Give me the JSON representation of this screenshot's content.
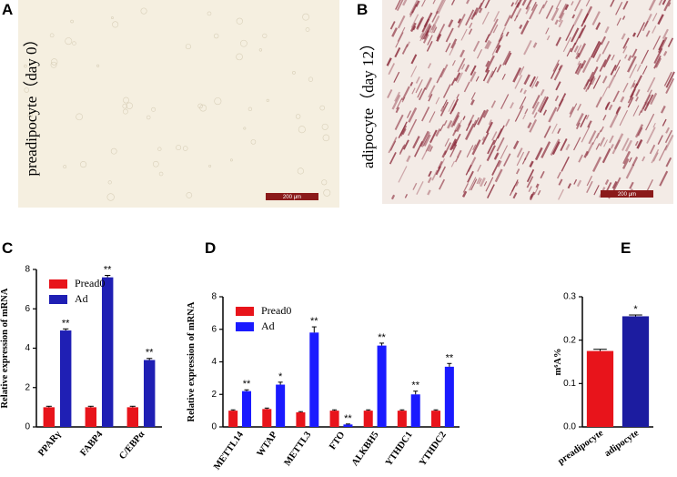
{
  "images": [
    {
      "panel_label": "A",
      "caption": "preadipocyte（day 0）",
      "scale_bar": "200 μm"
    },
    {
      "panel_label": "B",
      "caption": "adipocyte（day 12）",
      "scale_bar": "200 μm"
    }
  ],
  "chart_data": [
    {
      "type": "bar",
      "panel_label": "C",
      "y_label": "Relative expression of  mRNA",
      "categories": [
        "PPARγ",
        "FABP4",
        "C/EBPα"
      ],
      "series": [
        {
          "name": "Pread0",
          "color": "#e8141b",
          "values": [
            1.0,
            1.0,
            1.0
          ],
          "errors": [
            0.05,
            0.05,
            0.05
          ]
        },
        {
          "name": "Ad",
          "color": "#1f1fb4",
          "values": [
            4.9,
            7.6,
            3.4
          ],
          "errors": [
            0.08,
            0.1,
            0.08
          ],
          "significance": [
            "**",
            "**",
            "**"
          ]
        }
      ],
      "ylim": [
        0,
        8
      ],
      "yticks": [
        0,
        2,
        4,
        6,
        8
      ],
      "legend": "upper left"
    },
    {
      "type": "bar",
      "panel_label": "D",
      "y_label": "Relative expression of  mRNA",
      "categories": [
        "METTL14",
        "WTAP",
        "METTL3",
        "FTO",
        "ALKBH5",
        "YTHDC1",
        "YTHDC2"
      ],
      "series": [
        {
          "name": "Pread0",
          "color": "#e8141b",
          "values": [
            1.0,
            1.1,
            0.9,
            1.0,
            1.0,
            1.0,
            1.0
          ],
          "errors": [
            0.05,
            0.06,
            0.04,
            0.05,
            0.05,
            0.05,
            0.05
          ]
        },
        {
          "name": "Ad",
          "color": "#1a1aff",
          "values": [
            2.2,
            2.6,
            5.8,
            0.15,
            5.0,
            2.0,
            3.7
          ],
          "errors": [
            0.08,
            0.15,
            0.35,
            0.03,
            0.15,
            0.2,
            0.2
          ],
          "significance": [
            "**",
            "*",
            "**",
            "**",
            "**",
            "**",
            "**"
          ]
        }
      ],
      "ylim": [
        0,
        8
      ],
      "yticks": [
        0,
        2,
        4,
        6,
        8
      ],
      "legend": "upper left"
    },
    {
      "type": "bar",
      "panel_label": "E",
      "y_label": "m⁶A%",
      "categories": [
        "preadipocyte",
        "adipocyte"
      ],
      "values": [
        0.175,
        0.255
      ],
      "errors": [
        0.004,
        0.003
      ],
      "colors": [
        "#e8141b",
        "#1c1ca0"
      ],
      "significance": [
        null,
        "*"
      ],
      "ylim": [
        0,
        0.3
      ],
      "yticks": [
        {
          "value": 0,
          "label": "0.0"
        },
        0.1,
        0.2,
        0.3
      ]
    }
  ]
}
